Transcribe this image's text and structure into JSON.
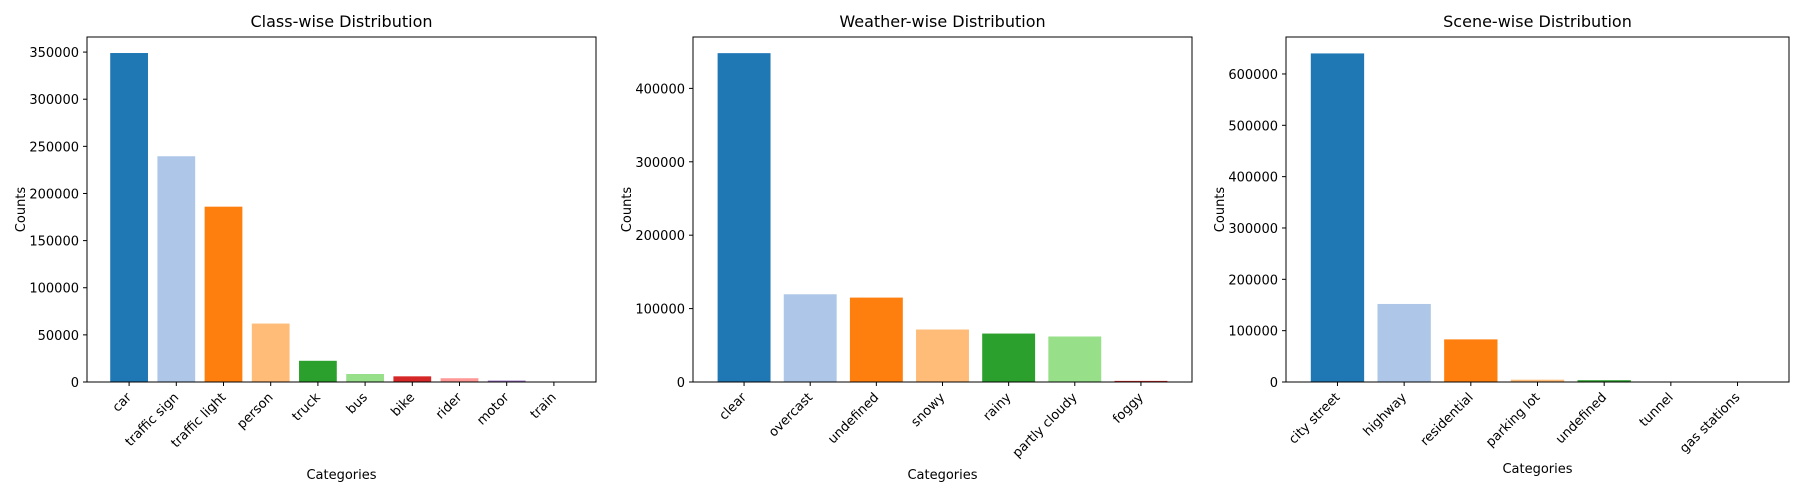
{
  "chart_data": [
    {
      "type": "bar",
      "title": "Class-wise Distribution",
      "xlabel": "Categories",
      "ylabel": "Counts",
      "categories": [
        "car",
        "traffic sign",
        "traffic light",
        "person",
        "truck",
        "bus",
        "bike",
        "rider",
        "motor",
        "train"
      ],
      "values": [
        349000,
        239500,
        186000,
        62000,
        22500,
        8500,
        6000,
        4000,
        1500,
        200
      ],
      "colors": [
        "#1f77b4",
        "#aec7e8",
        "#ff7f0e",
        "#ffbb78",
        "#2ca02c",
        "#98df8a",
        "#d62728",
        "#ff9896",
        "#9467bd",
        "#c5b0d5"
      ],
      "ylim": [
        0,
        366000
      ],
      "yticks": [
        0,
        50000,
        100000,
        150000,
        200000,
        250000,
        300000,
        350000
      ],
      "grid": false
    },
    {
      "type": "bar",
      "title": "Weather-wise Distribution",
      "xlabel": "Categories",
      "ylabel": "Counts",
      "categories": [
        "clear",
        "overcast",
        "undefined",
        "snowy",
        "rainy",
        "partly cloudy",
        "foggy"
      ],
      "values": [
        448000,
        119500,
        115000,
        71500,
        66000,
        62000,
        1500
      ],
      "colors": [
        "#1f77b4",
        "#aec7e8",
        "#ff7f0e",
        "#ffbb78",
        "#2ca02c",
        "#98df8a",
        "#d62728"
      ],
      "ylim": [
        0,
        470000
      ],
      "yticks": [
        0,
        100000,
        200000,
        300000,
        400000
      ],
      "grid": false
    },
    {
      "type": "bar",
      "title": "Scene-wise Distribution",
      "xlabel": "Categories",
      "ylabel": "Counts",
      "categories": [
        "city street",
        "highway",
        "residential",
        "parking lot",
        "undefined",
        "tunnel",
        "gas stations"
      ],
      "values": [
        640000,
        152000,
        83000,
        4500,
        3500,
        1000,
        300
      ],
      "colors": [
        "#1f77b4",
        "#aec7e8",
        "#ff7f0e",
        "#ffbb78",
        "#2ca02c",
        "#98df8a",
        "#d62728"
      ],
      "ylim": [
        0,
        672000
      ],
      "yticks": [
        0,
        100000,
        200000,
        300000,
        400000,
        500000,
        600000
      ],
      "grid": false
    }
  ]
}
